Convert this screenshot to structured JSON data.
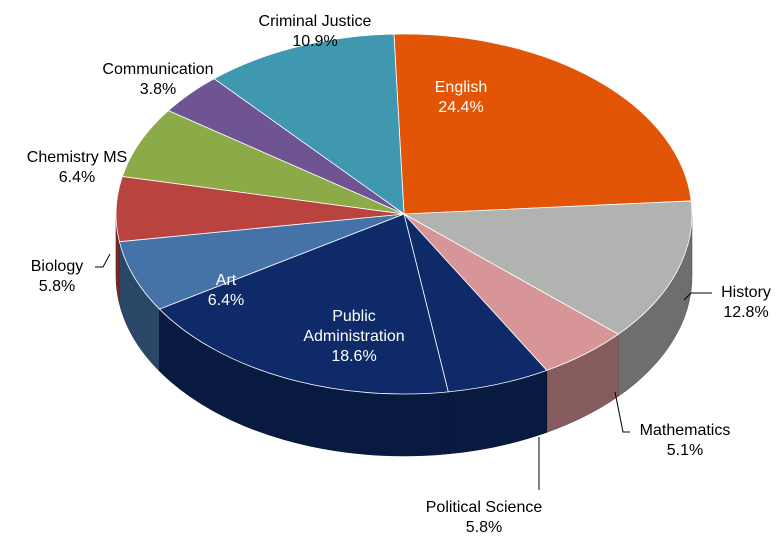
{
  "chart_data": {
    "type": "pie",
    "title": "",
    "style": "3d-exploded-disc",
    "slices": [
      {
        "name": "English",
        "pct_label": "24.4%",
        "value": 24.4,
        "color": "#E35506"
      },
      {
        "name": "History",
        "pct_label": "12.8%",
        "value": 12.8,
        "color": "#B1B3B0"
      },
      {
        "name": "Mathematics",
        "pct_label": "5.1%",
        "value": 5.1,
        "color": "#D89597"
      },
      {
        "name": "Political Science",
        "pct_label": "5.8%",
        "value": 5.8,
        "color": "#0F2A69"
      },
      {
        "name": "Public Administration",
        "pct_label": "18.6%",
        "value": 18.6,
        "color": "#0F2A69"
      },
      {
        "name": "Art",
        "pct_label": "6.4%",
        "value": 6.4,
        "color": "#4572A7"
      },
      {
        "name": "Biology",
        "pct_label": "5.8%",
        "value": 5.8,
        "color": "#B9433F"
      },
      {
        "name": "Chemistry MS",
        "pct_label": "6.4%",
        "value": 6.4,
        "color": "#8CAA48"
      },
      {
        "name": "Communication",
        "pct_label": "3.8%",
        "value": 3.8,
        "color": "#6E5493"
      },
      {
        "name": "Criminal Justice",
        "pct_label": "10.9%",
        "value": 10.9,
        "color": "#3F98B0"
      }
    ],
    "label_texts": {
      "public_administration_lines": [
        "Public",
        "Administration",
        "18.6%"
      ]
    }
  }
}
